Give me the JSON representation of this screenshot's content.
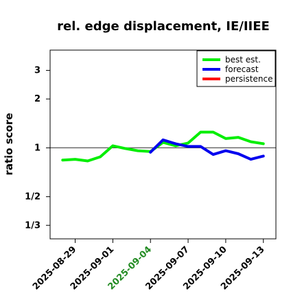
{
  "chart_data": {
    "type": "line",
    "title": "rel. edge displacement, IE/IIEE",
    "xlabel": "",
    "ylabel": "ratio score",
    "y_scale": "log",
    "ylim": [
      0.275,
      4.0
    ],
    "y_ticks": [
      {
        "value": 0.3333,
        "label": "1/3"
      },
      {
        "value": 0.5,
        "label": "1/2"
      },
      {
        "value": 1,
        "label": "1"
      },
      {
        "value": 2,
        "label": "2"
      },
      {
        "value": 3,
        "label": "3"
      }
    ],
    "xlim": [
      "2025-08-27",
      "2025-09-14"
    ],
    "x_ticks": [
      {
        "value": "2025-08-29",
        "label": "2025-08-29",
        "color": "#000000"
      },
      {
        "value": "2025-09-01",
        "label": "2025-09-01",
        "color": "#000000"
      },
      {
        "value": "2025-09-04",
        "label": "2025-09-04",
        "color": "#228b22"
      },
      {
        "value": "2025-09-07",
        "label": "2025-09-07",
        "color": "#000000"
      },
      {
        "value": "2025-09-10",
        "label": "2025-09-10",
        "color": "#000000"
      },
      {
        "value": "2025-09-13",
        "label": "2025-09-13",
        "color": "#000000"
      }
    ],
    "reference_line": 1,
    "legend": {
      "placement": "top-right"
    },
    "series": [
      {
        "name": "best est.",
        "color": "#00ee00",
        "points": [
          [
            "2025-08-28",
            0.84
          ],
          [
            "2025-08-29",
            0.85
          ],
          [
            "2025-08-30",
            0.83
          ],
          [
            "2025-08-31",
            0.88
          ],
          [
            "2025-09-01",
            1.03
          ],
          [
            "2025-09-02",
            0.99
          ],
          [
            "2025-09-03",
            0.96
          ],
          [
            "2025-09-04",
            0.95
          ],
          [
            "2025-09-05",
            1.08
          ],
          [
            "2025-09-06",
            1.03
          ],
          [
            "2025-09-07",
            1.07
          ],
          [
            "2025-09-08",
            1.25
          ],
          [
            "2025-09-09",
            1.25
          ],
          [
            "2025-09-10",
            1.14
          ],
          [
            "2025-09-11",
            1.16
          ],
          [
            "2025-09-12",
            1.09
          ],
          [
            "2025-09-13",
            1.06
          ]
        ]
      },
      {
        "name": "forecast",
        "color": "#0000ee",
        "points": [
          [
            "2025-09-04",
            0.94
          ],
          [
            "2025-09-05",
            1.12
          ],
          [
            "2025-09-06",
            1.06
          ],
          [
            "2025-09-07",
            1.02
          ],
          [
            "2025-09-08",
            1.02
          ],
          [
            "2025-09-09",
            0.91
          ],
          [
            "2025-09-10",
            0.96
          ],
          [
            "2025-09-11",
            0.92
          ],
          [
            "2025-09-12",
            0.85
          ],
          [
            "2025-09-13",
            0.89
          ]
        ]
      },
      {
        "name": "persistence",
        "color": "#ff0000",
        "points": []
      }
    ]
  }
}
